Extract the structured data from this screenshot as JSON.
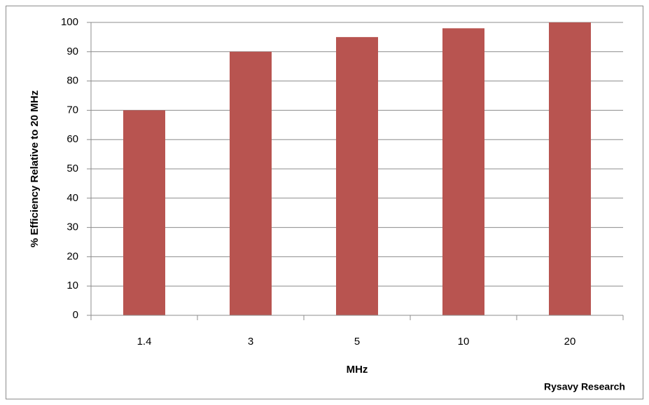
{
  "chart_data": {
    "type": "bar",
    "categories": [
      "1.4",
      "3",
      "5",
      "10",
      "20"
    ],
    "values": [
      70,
      90,
      95,
      98,
      100
    ],
    "color": "#b85450",
    "x_label": "MHz",
    "y_label": "% Efficiency  Relative to 20 MHz",
    "annotation": "Rysavy Research",
    "ylim": [
      0,
      100
    ],
    "yticks": [
      0,
      10,
      20,
      30,
      40,
      50,
      60,
      70,
      80,
      90,
      100
    ],
    "grid": true
  }
}
